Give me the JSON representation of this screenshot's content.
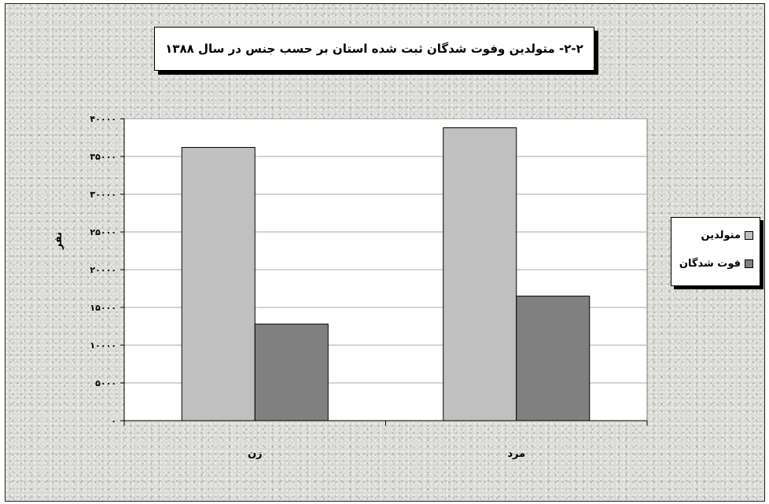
{
  "chart_data": {
    "type": "bar",
    "title": "۲-۲- متولدین وفوت شدگان ثبت شده استان بر حسب جنس در سال ۱۳۸۸",
    "ylabel": "نفر",
    "xlabel": "",
    "categories": [
      "زن",
      "مرد"
    ],
    "series": [
      {
        "name": "متولدین",
        "values": [
          36200,
          38800
        ],
        "color": "#c0c0c0"
      },
      {
        "name": "فوت شدگان",
        "values": [
          12800,
          16500
        ],
        "color": "#808080"
      }
    ],
    "ylim": [
      0,
      40000
    ],
    "yticks": [
      0,
      5000,
      10000,
      15000,
      20000,
      25000,
      30000,
      35000,
      40000
    ],
    "ytick_labels": [
      "۰",
      "۵۰۰۰",
      "۱۰۰۰۰",
      "۱۵۰۰۰",
      "۲۰۰۰۰",
      "۲۵۰۰۰",
      "۳۰۰۰۰",
      "۳۵۰۰۰",
      "۴۰۰۰۰"
    ],
    "grid": true,
    "legend_position": "right",
    "plot_background": "#ffffff"
  }
}
